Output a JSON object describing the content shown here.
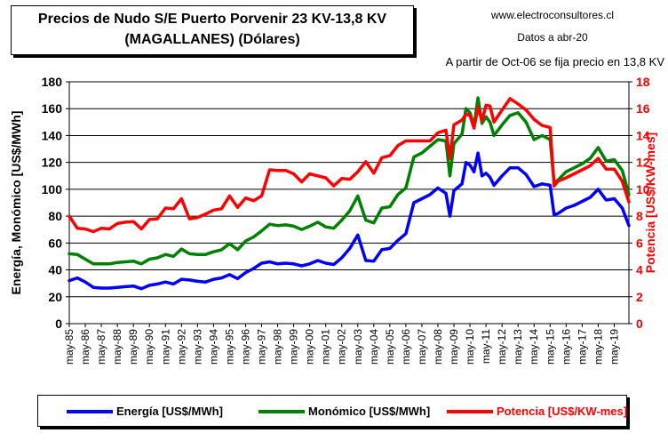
{
  "header": {
    "title_line1": "Precios de Nudo S/E Puerto Porvenir 23 KV-13,8 KV",
    "title_line2": "(MAGALLANES) (Dólares)",
    "website": "www.electroconsultores.cl",
    "data_date": "Datos a abr-20",
    "note": "A partir de Oct-06 se fija precio en 13,8 KV"
  },
  "chart_data": {
    "type": "line",
    "ylabel": "Energía, Monómico [US$/MWh]",
    "y2label": "Potencia [US$/KW-mes]",
    "ylim": [
      0,
      180
    ],
    "y2lim": [
      0,
      18
    ],
    "y_ticks": [
      "0",
      "20",
      "40",
      "60",
      "80",
      "100",
      "120",
      "140",
      "160",
      "180"
    ],
    "y2_ticks": [
      "0",
      "2",
      "4",
      "6",
      "8",
      "10",
      "12",
      "14",
      "16",
      "18"
    ],
    "grid": true,
    "legend_position": "bottom",
    "x_tick_labels": [
      "may-85",
      "may-86",
      "may-87",
      "may-88",
      "may-89",
      "may-90",
      "may-91",
      "may-92",
      "may-93",
      "may-94",
      "may-95",
      "may-96",
      "may-97",
      "may-98",
      "may-99",
      "may-00",
      "may-01",
      "may-02",
      "may-03",
      "may-04",
      "may-05",
      "may-06",
      "may-07",
      "may-08",
      "may-09",
      "may-10",
      "may-11",
      "may-12",
      "may-13",
      "may-14",
      "may-15",
      "may-16",
      "may-17",
      "may-18",
      "may-19"
    ],
    "x_range": [
      "1985-05",
      "2020-04"
    ],
    "colors": {
      "energia": "#0000ff",
      "monomico": "#008000",
      "potencia": "#ff0000"
    },
    "series": [
      {
        "name": "Energía [US$/MWh]",
        "axis": "left",
        "color": "#0000ff",
        "points": [
          [
            "1985-05",
            32
          ],
          [
            "1985-11",
            34
          ],
          [
            "1986-05",
            31
          ],
          [
            "1986-11",
            27
          ],
          [
            "1987-05",
            26.5
          ],
          [
            "1987-11",
            26.5
          ],
          [
            "1988-05",
            27
          ],
          [
            "1988-11",
            27.5
          ],
          [
            "1989-05",
            28
          ],
          [
            "1989-11",
            26
          ],
          [
            "1990-05",
            28.5
          ],
          [
            "1990-11",
            29.5
          ],
          [
            "1991-05",
            31
          ],
          [
            "1991-11",
            29.5
          ],
          [
            "1992-05",
            33
          ],
          [
            "1992-11",
            32.5
          ],
          [
            "1993-05",
            31.5
          ],
          [
            "1993-11",
            31
          ],
          [
            "1994-05",
            33
          ],
          [
            "1994-11",
            34
          ],
          [
            "1995-05",
            36.5
          ],
          [
            "1995-11",
            33.5
          ],
          [
            "1996-05",
            38
          ],
          [
            "1996-11",
            41
          ],
          [
            "1997-05",
            45
          ],
          [
            "1997-11",
            46
          ],
          [
            "1998-05",
            44.5
          ],
          [
            "1998-11",
            45
          ],
          [
            "1999-05",
            44.5
          ],
          [
            "1999-11",
            43
          ],
          [
            "2000-05",
            44.5
          ],
          [
            "2000-11",
            47
          ],
          [
            "2001-05",
            45
          ],
          [
            "2001-11",
            44
          ],
          [
            "2002-05",
            49
          ],
          [
            "2002-11",
            56
          ],
          [
            "2003-05",
            66
          ],
          [
            "2003-11",
            47
          ],
          [
            "2004-05",
            46.5
          ],
          [
            "2004-11",
            55
          ],
          [
            "2005-05",
            56
          ],
          [
            "2005-11",
            62
          ],
          [
            "2006-05",
            67
          ],
          [
            "2006-11",
            90
          ],
          [
            "2007-05",
            93
          ],
          [
            "2007-11",
            96
          ],
          [
            "2008-05",
            101
          ],
          [
            "2008-11",
            97
          ],
          [
            "2009-02",
            80
          ],
          [
            "2009-05",
            99
          ],
          [
            "2009-11",
            104
          ],
          [
            "2010-02",
            120
          ],
          [
            "2010-05",
            118
          ],
          [
            "2010-08",
            113
          ],
          [
            "2010-11",
            127
          ],
          [
            "2011-02",
            110
          ],
          [
            "2011-05",
            112
          ],
          [
            "2011-08",
            109
          ],
          [
            "2011-11",
            103
          ],
          [
            "2012-05",
            110
          ],
          [
            "2012-11",
            116
          ],
          [
            "2013-05",
            116
          ],
          [
            "2013-11",
            111
          ],
          [
            "2014-05",
            102
          ],
          [
            "2014-11",
            104
          ],
          [
            "2015-05",
            103
          ],
          [
            "2015-08",
            81
          ],
          [
            "2015-11",
            82
          ],
          [
            "2016-05",
            86
          ],
          [
            "2016-11",
            88
          ],
          [
            "2017-05",
            91
          ],
          [
            "2017-11",
            94
          ],
          [
            "2018-05",
            100
          ],
          [
            "2018-11",
            92
          ],
          [
            "2019-05",
            93
          ],
          [
            "2019-11",
            86
          ],
          [
            "2020-04",
            73
          ]
        ]
      },
      {
        "name": "Monómico [US$/MWh]",
        "axis": "left",
        "color": "#008000",
        "points": [
          [
            "1985-05",
            52
          ],
          [
            "1985-11",
            51.5
          ],
          [
            "1986-05",
            48
          ],
          [
            "1986-11",
            44.5
          ],
          [
            "1987-05",
            44.5
          ],
          [
            "1987-11",
            44.5
          ],
          [
            "1988-05",
            45.5
          ],
          [
            "1988-11",
            46
          ],
          [
            "1989-05",
            46.5
          ],
          [
            "1989-11",
            44.5
          ],
          [
            "1990-05",
            48
          ],
          [
            "1990-11",
            49
          ],
          [
            "1991-05",
            51.5
          ],
          [
            "1991-11",
            50
          ],
          [
            "1992-05",
            55.5
          ],
          [
            "1992-11",
            52
          ],
          [
            "1993-05",
            51.5
          ],
          [
            "1993-11",
            51.5
          ],
          [
            "1994-05",
            53.5
          ],
          [
            "1994-11",
            55
          ],
          [
            "1995-05",
            59.5
          ],
          [
            "1995-11",
            55
          ],
          [
            "1996-05",
            61.5
          ],
          [
            "1996-11",
            64.5
          ],
          [
            "1997-05",
            69
          ],
          [
            "1997-11",
            74
          ],
          [
            "1998-05",
            73
          ],
          [
            "1998-11",
            73.5
          ],
          [
            "1999-05",
            72.5
          ],
          [
            "1999-11",
            70
          ],
          [
            "2000-05",
            72.5
          ],
          [
            "2000-11",
            75.5
          ],
          [
            "2001-05",
            72
          ],
          [
            "2001-11",
            71
          ],
          [
            "2002-05",
            77
          ],
          [
            "2002-11",
            84
          ],
          [
            "2003-05",
            95
          ],
          [
            "2003-11",
            77
          ],
          [
            "2004-05",
            75
          ],
          [
            "2004-11",
            86
          ],
          [
            "2005-05",
            87
          ],
          [
            "2005-11",
            96
          ],
          [
            "2006-05",
            101
          ],
          [
            "2006-11",
            124
          ],
          [
            "2007-05",
            127
          ],
          [
            "2007-11",
            132
          ],
          [
            "2008-05",
            137
          ],
          [
            "2008-11",
            136
          ],
          [
            "2009-02",
            110
          ],
          [
            "2009-05",
            134
          ],
          [
            "2009-11",
            141
          ],
          [
            "2010-02",
            160
          ],
          [
            "2010-05",
            157
          ],
          [
            "2010-08",
            147
          ],
          [
            "2010-11",
            168
          ],
          [
            "2011-02",
            149
          ],
          [
            "2011-05",
            154
          ],
          [
            "2011-08",
            150
          ],
          [
            "2011-11",
            140
          ],
          [
            "2012-05",
            148
          ],
          [
            "2012-11",
            155
          ],
          [
            "2013-05",
            157
          ],
          [
            "2013-11",
            150
          ],
          [
            "2014-05",
            137
          ],
          [
            "2014-11",
            140
          ],
          [
            "2015-05",
            137
          ],
          [
            "2015-08",
            105
          ],
          [
            "2015-11",
            107
          ],
          [
            "2016-05",
            113
          ],
          [
            "2016-11",
            116
          ],
          [
            "2017-05",
            119
          ],
          [
            "2017-11",
            123
          ],
          [
            "2018-05",
            131
          ],
          [
            "2018-11",
            121
          ],
          [
            "2019-05",
            122
          ],
          [
            "2019-11",
            114
          ],
          [
            "2020-04",
            96
          ]
        ]
      },
      {
        "name": "Potencia [US$/KW-mes]",
        "axis": "right",
        "color": "#ff0000",
        "points": [
          [
            "1985-05",
            8
          ],
          [
            "1985-11",
            7.1
          ],
          [
            "1986-05",
            7.05
          ],
          [
            "1986-11",
            6.85
          ],
          [
            "1987-05",
            7.1
          ],
          [
            "1987-11",
            7.05
          ],
          [
            "1988-05",
            7.45
          ],
          [
            "1988-11",
            7.55
          ],
          [
            "1989-05",
            7.6
          ],
          [
            "1989-11",
            7.05
          ],
          [
            "1990-05",
            7.75
          ],
          [
            "1990-11",
            7.8
          ],
          [
            "1991-05",
            8.6
          ],
          [
            "1991-11",
            8.55
          ],
          [
            "1992-05",
            9.3
          ],
          [
            "1992-11",
            7.8
          ],
          [
            "1993-05",
            7.9
          ],
          [
            "1993-11",
            8.15
          ],
          [
            "1994-05",
            8.45
          ],
          [
            "1994-11",
            8.55
          ],
          [
            "1995-05",
            9.5
          ],
          [
            "1995-11",
            8.65
          ],
          [
            "1996-05",
            9.35
          ],
          [
            "1996-11",
            9.15
          ],
          [
            "1997-05",
            9.5
          ],
          [
            "1997-11",
            11.45
          ],
          [
            "1998-05",
            11.4
          ],
          [
            "1998-11",
            11.4
          ],
          [
            "1999-05",
            11.15
          ],
          [
            "1999-11",
            10.55
          ],
          [
            "2000-05",
            11.15
          ],
          [
            "2000-11",
            11
          ],
          [
            "2001-05",
            10.85
          ],
          [
            "2001-11",
            10.25
          ],
          [
            "2002-05",
            10.8
          ],
          [
            "2002-11",
            10.75
          ],
          [
            "2003-05",
            11.3
          ],
          [
            "2003-11",
            12.05
          ],
          [
            "2004-05",
            11.2
          ],
          [
            "2004-11",
            12.35
          ],
          [
            "2005-05",
            12.5
          ],
          [
            "2005-11",
            13.25
          ],
          [
            "2006-05",
            13.6
          ],
          [
            "2006-11",
            13.6
          ],
          [
            "2007-05",
            13.6
          ],
          [
            "2007-11",
            13.6
          ],
          [
            "2008-05",
            14.2
          ],
          [
            "2008-11",
            14.4
          ],
          [
            "2009-02",
            12.3
          ],
          [
            "2009-05",
            14.8
          ],
          [
            "2009-11",
            15.15
          ],
          [
            "2010-02",
            15.6
          ],
          [
            "2010-05",
            15.5
          ],
          [
            "2010-08",
            14.55
          ],
          [
            "2010-11",
            16.1
          ],
          [
            "2011-02",
            15.1
          ],
          [
            "2011-05",
            16.25
          ],
          [
            "2011-08",
            16.2
          ],
          [
            "2011-11",
            15
          ],
          [
            "2012-05",
            15.9
          ],
          [
            "2012-11",
            16.75
          ],
          [
            "2013-05",
            16.35
          ],
          [
            "2013-11",
            15.9
          ],
          [
            "2014-05",
            15.2
          ],
          [
            "2014-11",
            14.75
          ],
          [
            "2015-05",
            14.6
          ],
          [
            "2015-08",
            10.25
          ],
          [
            "2015-11",
            10.6
          ],
          [
            "2016-05",
            10.85
          ],
          [
            "2016-11",
            11.15
          ],
          [
            "2017-05",
            11.45
          ],
          [
            "2017-11",
            11.75
          ],
          [
            "2018-05",
            12.3
          ],
          [
            "2018-11",
            11.5
          ],
          [
            "2019-05",
            11.5
          ],
          [
            "2019-11",
            10.6
          ],
          [
            "2020-04",
            9.05
          ]
        ]
      }
    ]
  }
}
